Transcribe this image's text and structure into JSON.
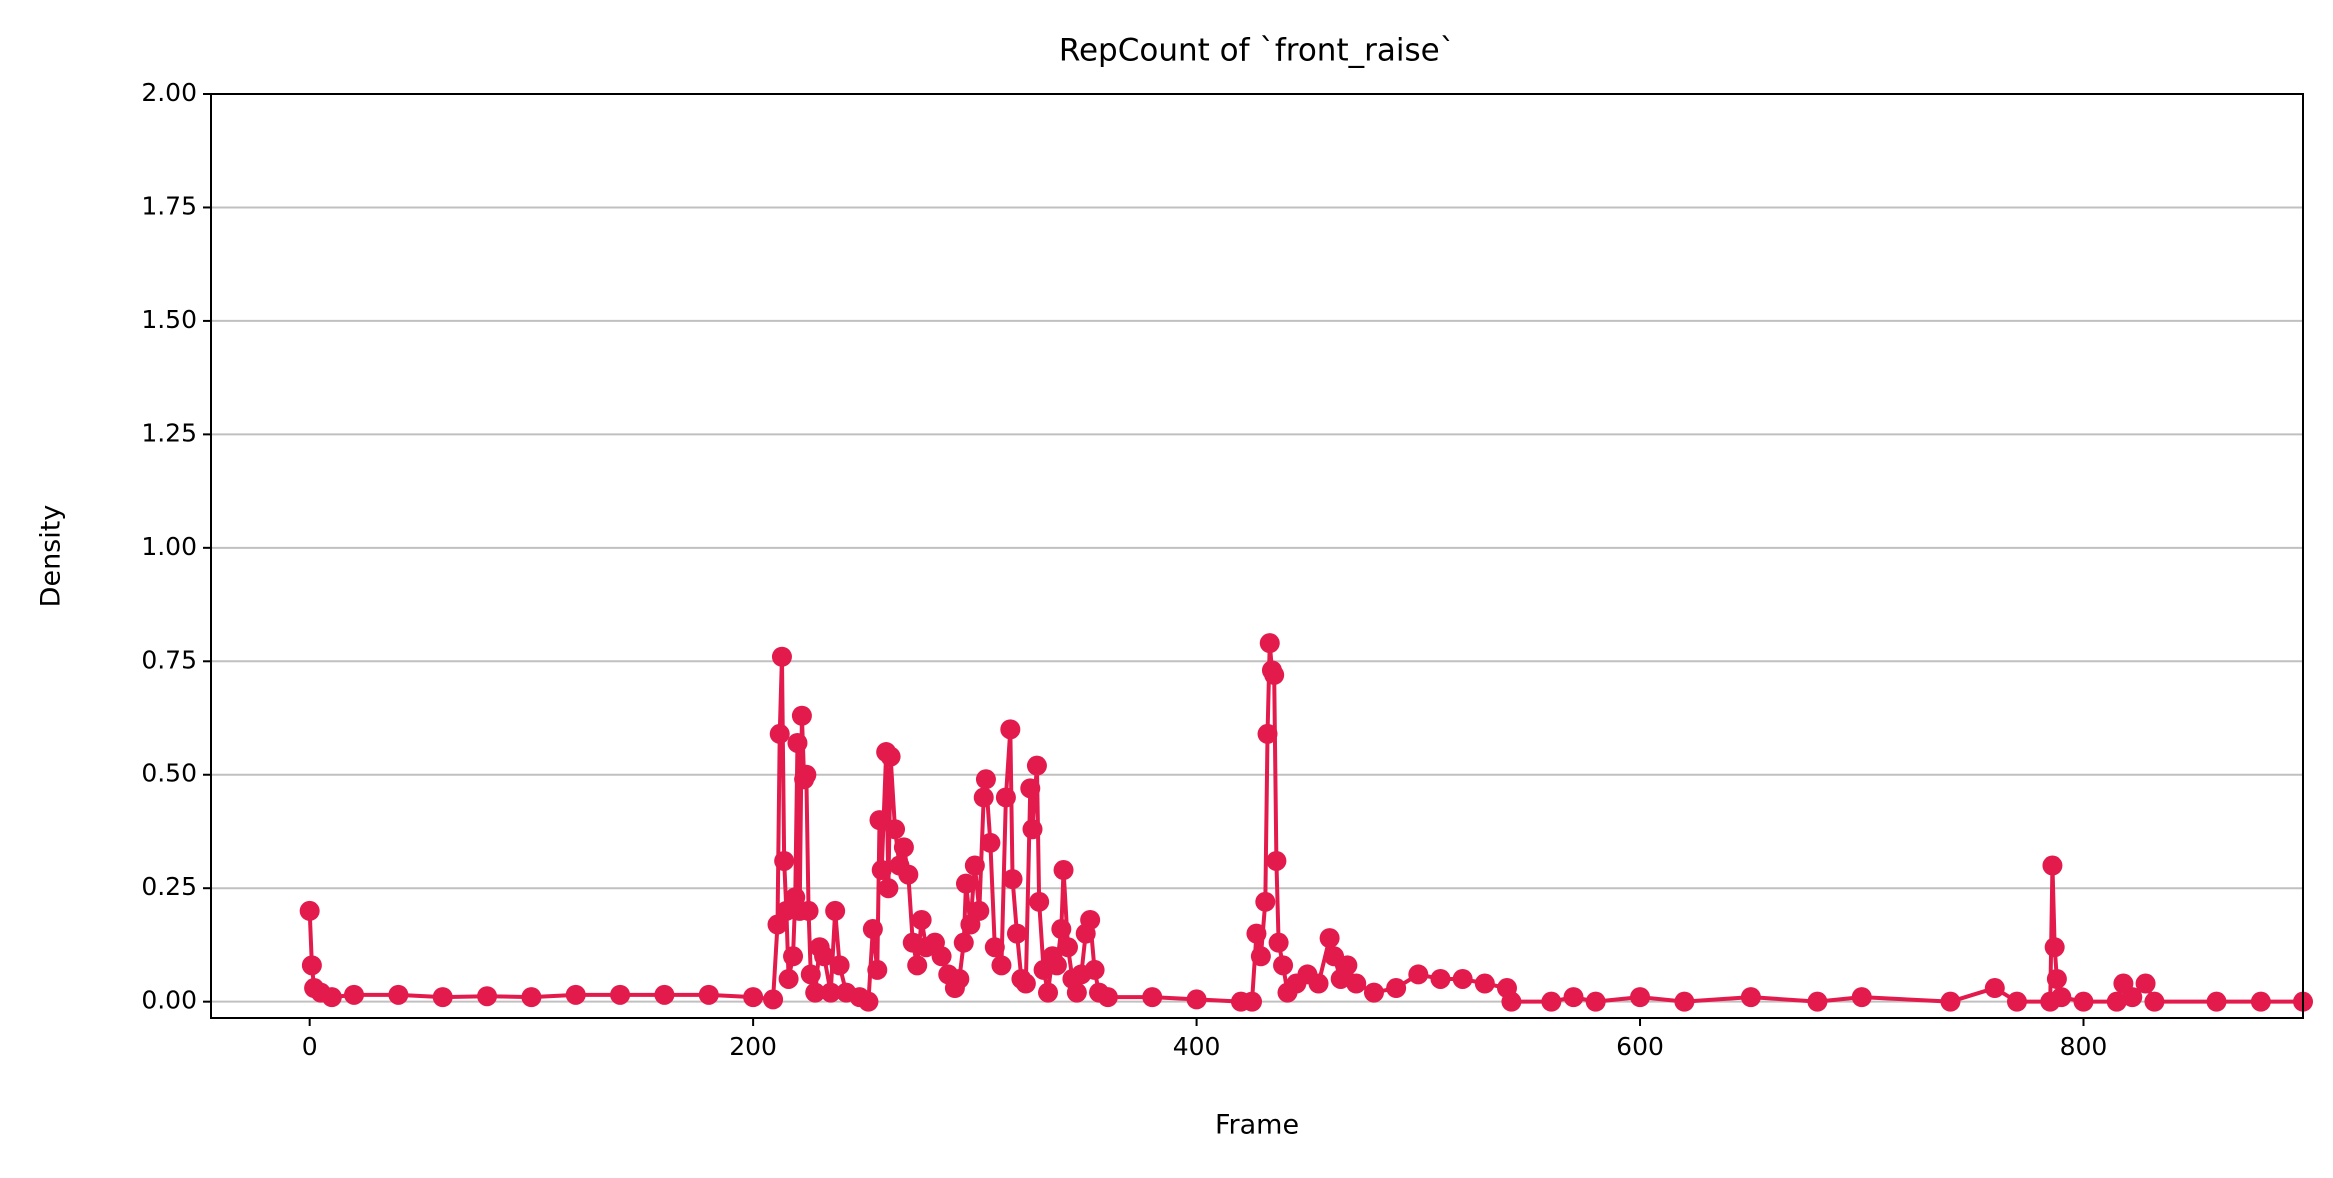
{
  "chart_data": {
    "type": "line",
    "title": "RepCount of `front_raise`",
    "x_label": "Frame",
    "y_label": "Density",
    "color": "#e31a4c",
    "grid": true,
    "xlim": [
      -44.5,
      899
    ],
    "ylim": [
      -0.036,
      2.0
    ],
    "xticks": [
      0,
      200,
      400,
      600,
      800
    ],
    "yticks": [
      {
        "value": 0,
        "label": "0.00"
      },
      {
        "value": 0.25,
        "label": "0.25"
      },
      {
        "value": 0.5,
        "label": "0.50"
      },
      {
        "value": 0.75,
        "label": "0.75"
      },
      {
        "value": 1,
        "label": "1.00"
      },
      {
        "value": 1.25,
        "label": "1.25"
      },
      {
        "value": 1.5,
        "label": "1.50"
      },
      {
        "value": 1.75,
        "label": "1.75"
      },
      {
        "value": 2,
        "label": "2.00"
      }
    ],
    "x": [
      0,
      1,
      2,
      5,
      10,
      20,
      40,
      60,
      80,
      100,
      120,
      140,
      160,
      180,
      200,
      209,
      211,
      212,
      213,
      214,
      215,
      216,
      218,
      219,
      220,
      221,
      222,
      223,
      224,
      225,
      226,
      228,
      230,
      232,
      235,
      237,
      239,
      242,
      248,
      252,
      254,
      256,
      257,
      258,
      260,
      261,
      262,
      264,
      266,
      268,
      270,
      272,
      274,
      276,
      278,
      282,
      285,
      288,
      291,
      293,
      295,
      296,
      298,
      300,
      302,
      304,
      305,
      307,
      309,
      312,
      314,
      316,
      317,
      319,
      321,
      323,
      325,
      326,
      328,
      329,
      331,
      333,
      335,
      337,
      339,
      340,
      342,
      344,
      346,
      348,
      350,
      352,
      354,
      356,
      360,
      380,
      400,
      420,
      425,
      427,
      429,
      431,
      432,
      433,
      434,
      435,
      436,
      437,
      439,
      441,
      445,
      450,
      455,
      460,
      462,
      465,
      468,
      472,
      480,
      490,
      500,
      510,
      520,
      530,
      540,
      542,
      560,
      570,
      580,
      600,
      620,
      650,
      680,
      700,
      740,
      760,
      770,
      785,
      786,
      787,
      788,
      790,
      800,
      815,
      818,
      822,
      828,
      832,
      860,
      880,
      899
    ],
    "values": [
      0.2,
      0.08,
      0.03,
      0.02,
      0.01,
      0.015,
      0.015,
      0.01,
      0.012,
      0.01,
      0.015,
      0.015,
      0.015,
      0.015,
      0.01,
      0.005,
      0.17,
      0.59,
      0.76,
      0.31,
      0.2,
      0.05,
      0.1,
      0.23,
      0.57,
      0.2,
      0.63,
      0.49,
      0.5,
      0.2,
      0.06,
      0.02,
      0.12,
      0.1,
      0.02,
      0.2,
      0.08,
      0.02,
      0.01,
      0.0,
      0.16,
      0.07,
      0.4,
      0.29,
      0.55,
      0.25,
      0.54,
      0.38,
      0.3,
      0.34,
      0.28,
      0.13,
      0.08,
      0.18,
      0.12,
      0.13,
      0.1,
      0.06,
      0.03,
      0.05,
      0.13,
      0.26,
      0.17,
      0.3,
      0.2,
      0.45,
      0.49,
      0.35,
      0.12,
      0.08,
      0.45,
      0.6,
      0.27,
      0.15,
      0.05,
      0.04,
      0.47,
      0.38,
      0.52,
      0.22,
      0.07,
      0.02,
      0.1,
      0.08,
      0.16,
      0.29,
      0.12,
      0.05,
      0.02,
      0.06,
      0.15,
      0.18,
      0.07,
      0.02,
      0.01,
      0.01,
      0.005,
      0.0,
      0.0,
      0.15,
      0.1,
      0.22,
      0.59,
      0.79,
      0.73,
      0.72,
      0.31,
      0.13,
      0.08,
      0.02,
      0.04,
      0.06,
      0.04,
      0.14,
      0.1,
      0.05,
      0.08,
      0.04,
      0.02,
      0.03,
      0.06,
      0.05,
      0.05,
      0.04,
      0.03,
      0.0,
      0.0,
      0.01,
      0.0,
      0.01,
      0.0,
      0.01,
      0.0,
      0.01,
      0.0,
      0.03,
      0.0,
      0.0,
      0.3,
      0.12,
      0.05,
      0.01,
      0.0,
      0.0,
      0.04,
      0.01,
      0.04,
      0.0,
      0.0,
      0.0,
      0.0
    ]
  }
}
